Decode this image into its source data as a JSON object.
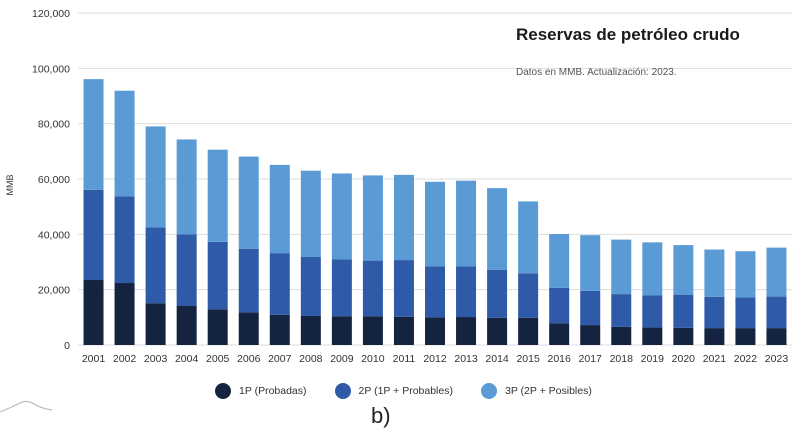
{
  "chart_data": {
    "type": "bar",
    "stacked": true,
    "title": "Reservas de petróleo crudo",
    "subtitle": "Datos en MMB. Actualización: 2023.",
    "ylabel": "MMB",
    "xlabel": "",
    "ylim": [
      0,
      120000
    ],
    "yticks": [
      "0",
      "20,000",
      "40,000",
      "60,000",
      "80,000",
      "100,000",
      "120,000"
    ],
    "ytick_values": [
      0,
      20000,
      40000,
      60000,
      80000,
      100000,
      120000
    ],
    "grid": true,
    "legend_position": "bottom",
    "categories": [
      "2001",
      "2002",
      "2003",
      "2004",
      "2005",
      "2006",
      "2007",
      "2008",
      "2009",
      "2010",
      "2011",
      "2012",
      "2013",
      "2014",
      "2015",
      "2016",
      "2017",
      "2018",
      "2019",
      "2020",
      "2021",
      "2022",
      "2023"
    ],
    "series": [
      {
        "name": "1P (Probadas)",
        "color": "#14233f",
        "values": [
          23500,
          22400,
          15100,
          14100,
          12900,
          11800,
          10900,
          10500,
          10400,
          10400,
          10200,
          10000,
          10100,
          9800,
          9800,
          7800,
          7200,
          6600,
          6300,
          6200,
          6100,
          6100,
          6100
        ]
      },
      {
        "name": "2P (1P + Probables)",
        "color": "#2f5aa7",
        "values": [
          32600,
          31300,
          27400,
          25900,
          24400,
          23000,
          22300,
          21300,
          20500,
          20100,
          20500,
          18400,
          18300,
          17400,
          16100,
          12900,
          12400,
          11800,
          11600,
          12000,
          11300,
          11100,
          11400
        ]
      },
      {
        "name": "3P (2P + Posibles)",
        "color": "#5b9bd5",
        "values": [
          40000,
          38200,
          36500,
          34300,
          33300,
          33300,
          31900,
          31200,
          31100,
          30800,
          30800,
          30600,
          31000,
          29500,
          26000,
          19400,
          20100,
          19700,
          19200,
          17900,
          17100,
          16700,
          17700
        ]
      }
    ],
    "caption": "b)"
  }
}
